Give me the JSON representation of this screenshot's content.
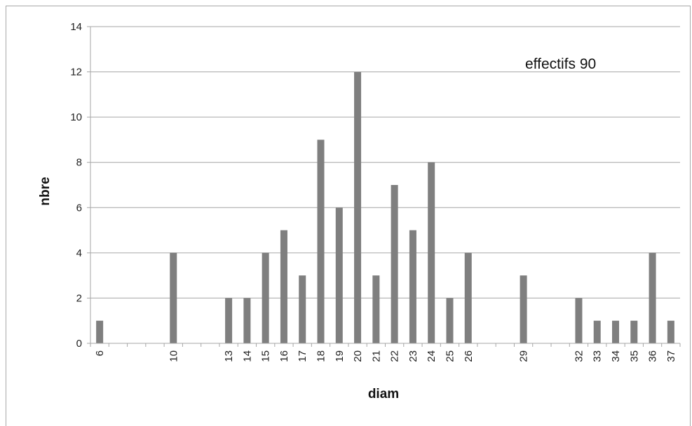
{
  "chart_data": {
    "type": "bar",
    "title": "",
    "annotation": "effectifs 90",
    "xlabel": "diam",
    "ylabel": "nbre",
    "ylim": [
      0,
      14
    ],
    "yticks": [
      0,
      2,
      4,
      6,
      8,
      10,
      12,
      14
    ],
    "grid": true,
    "categories": [
      "6",
      "7",
      "8",
      "9",
      "10",
      "11",
      "12",
      "13",
      "14",
      "15",
      "16",
      "17",
      "18",
      "19",
      "20",
      "21",
      "22",
      "23",
      "24",
      "25",
      "26",
      "27",
      "28",
      "29",
      "30",
      "31",
      "32",
      "33",
      "34",
      "35",
      "36",
      "37"
    ],
    "shown_tick_labels": [
      "6",
      "10",
      "13",
      "14",
      "15",
      "16",
      "17",
      "18",
      "19",
      "20",
      "21",
      "22",
      "23",
      "24",
      "25",
      "26",
      "29",
      "32",
      "33",
      "34",
      "35",
      "36",
      "37"
    ],
    "values": [
      1,
      0,
      0,
      0,
      4,
      0,
      0,
      2,
      2,
      4,
      5,
      3,
      9,
      6,
      12,
      3,
      7,
      5,
      8,
      2,
      4,
      0,
      0,
      3,
      0,
      0,
      2,
      1,
      1,
      1,
      4,
      1
    ],
    "colors": {
      "bar": "#7f7f7f",
      "grid": "#a6a6a6",
      "axis": "#a6a6a6"
    }
  }
}
